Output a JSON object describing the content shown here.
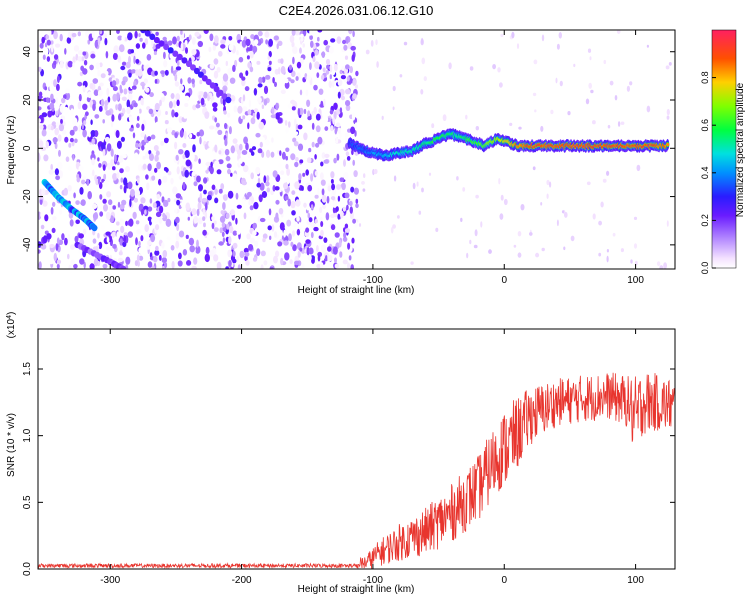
{
  "title": "C2E4.2026.031.06.12.G10",
  "chart_data": [
    {
      "type": "heatmap",
      "title": "C2E4.2026.031.06.12.G10",
      "xlabel": "Height of straight line (km)",
      "ylabel": "Frequency (Hz)",
      "xlim": [
        -355,
        130
      ],
      "ylim": [
        -50,
        49
      ],
      "xticks": [
        -300,
        -200,
        -100,
        0,
        100
      ],
      "xtick_labels": [
        "-300",
        "-200",
        "-100",
        "0",
        "100"
      ],
      "yticks": [
        -40,
        -20,
        0,
        20,
        40
      ],
      "ytick_labels": [
        "-40",
        "-20",
        "0",
        "20",
        "40"
      ],
      "colorbar": {
        "label": "Normalized spectral amplitude",
        "range": [
          0,
          1
        ],
        "ticks": [
          0.0,
          0.2,
          0.4,
          0.6,
          0.8
        ],
        "tick_labels": [
          "0.0",
          "0.2",
          "0.4",
          "0.6",
          "0.8"
        ]
      },
      "noise_region": {
        "x_range": [
          -355,
          -112
        ],
        "freq_range": [
          -50,
          49
        ]
      },
      "features": [
        {
          "name": "faint diagonal streak",
          "points": [
            [
              -275,
              49
            ],
            [
              -240,
              35
            ],
            [
              -210,
              20
            ]
          ],
          "amplitude": 0.25
        },
        {
          "name": "diagonal track",
          "points": [
            [
              -350,
              -14
            ],
            [
              -340,
              -20
            ],
            [
              -330,
              -25
            ],
            [
              -320,
              -29
            ],
            [
              -312,
              -33
            ]
          ],
          "amplitude": 0.4
        },
        {
          "name": "lower streak",
          "points": [
            [
              -325,
              -40
            ],
            [
              -300,
              -47
            ],
            [
              -290,
              -50
            ]
          ],
          "amplitude": 0.2
        }
      ],
      "signal_track": {
        "x": [
          -118,
          -110,
          -100,
          -90,
          -80,
          -70,
          -60,
          -50,
          -42,
          -35,
          -25,
          -15,
          -5,
          0,
          10,
          20,
          40,
          60,
          80,
          100,
          110,
          125
        ],
        "freq": [
          2,
          0,
          -2,
          -3,
          -2,
          -1,
          2,
          4,
          6,
          5,
          3,
          1,
          4,
          3,
          1,
          1,
          1,
          1,
          1,
          1,
          1,
          1
        ],
        "amplitude": [
          0.3,
          0.35,
          0.4,
          0.45,
          0.5,
          0.5,
          0.55,
          0.6,
          0.55,
          0.55,
          0.6,
          0.65,
          0.7,
          0.75,
          0.85,
          0.9,
          0.9,
          0.9,
          0.9,
          0.9,
          0.9,
          0.85
        ]
      }
    },
    {
      "type": "line",
      "title": "",
      "xlabel": "Height of straight line (km)",
      "ylabel": "SNR (10 * v/v)",
      "multiplier_label": "(x10",
      "multiplier_exp": "4",
      "multiplier_close": ")",
      "xlim": [
        -355,
        130
      ],
      "ylim": [
        0,
        1.8
      ],
      "xticks": [
        -300,
        -200,
        -100,
        0,
        100
      ],
      "xtick_labels": [
        "-300",
        "-200",
        "-100",
        "0",
        "100"
      ],
      "yticks": [
        0,
        0.5,
        1.0,
        1.5
      ],
      "ytick_labels": [
        "0.0",
        "0.5",
        "1.0",
        "1.5"
      ],
      "color": "#e8352e",
      "series": [
        {
          "name": "SNR",
          "envelope": {
            "x": [
              -355,
              -120,
              -105,
              -95,
              -80,
              -60,
              -40,
              -20,
              -5,
              5,
              20,
              40,
              60,
              80,
              95,
              100,
              105,
              115,
              130
            ],
            "mean": [
              0.02,
              0.02,
              0.05,
              0.12,
              0.2,
              0.28,
              0.42,
              0.6,
              0.85,
              0.95,
              1.15,
              1.25,
              1.28,
              1.3,
              1.25,
              1.1,
              1.25,
              1.25,
              1.22
            ],
            "spread": [
              0.02,
              0.02,
              0.06,
              0.1,
              0.14,
              0.18,
              0.22,
              0.25,
              0.28,
              0.3,
              0.22,
              0.18,
              0.18,
              0.18,
              0.2,
              0.35,
              0.25,
              0.22,
              0.2
            ]
          }
        }
      ]
    }
  ]
}
